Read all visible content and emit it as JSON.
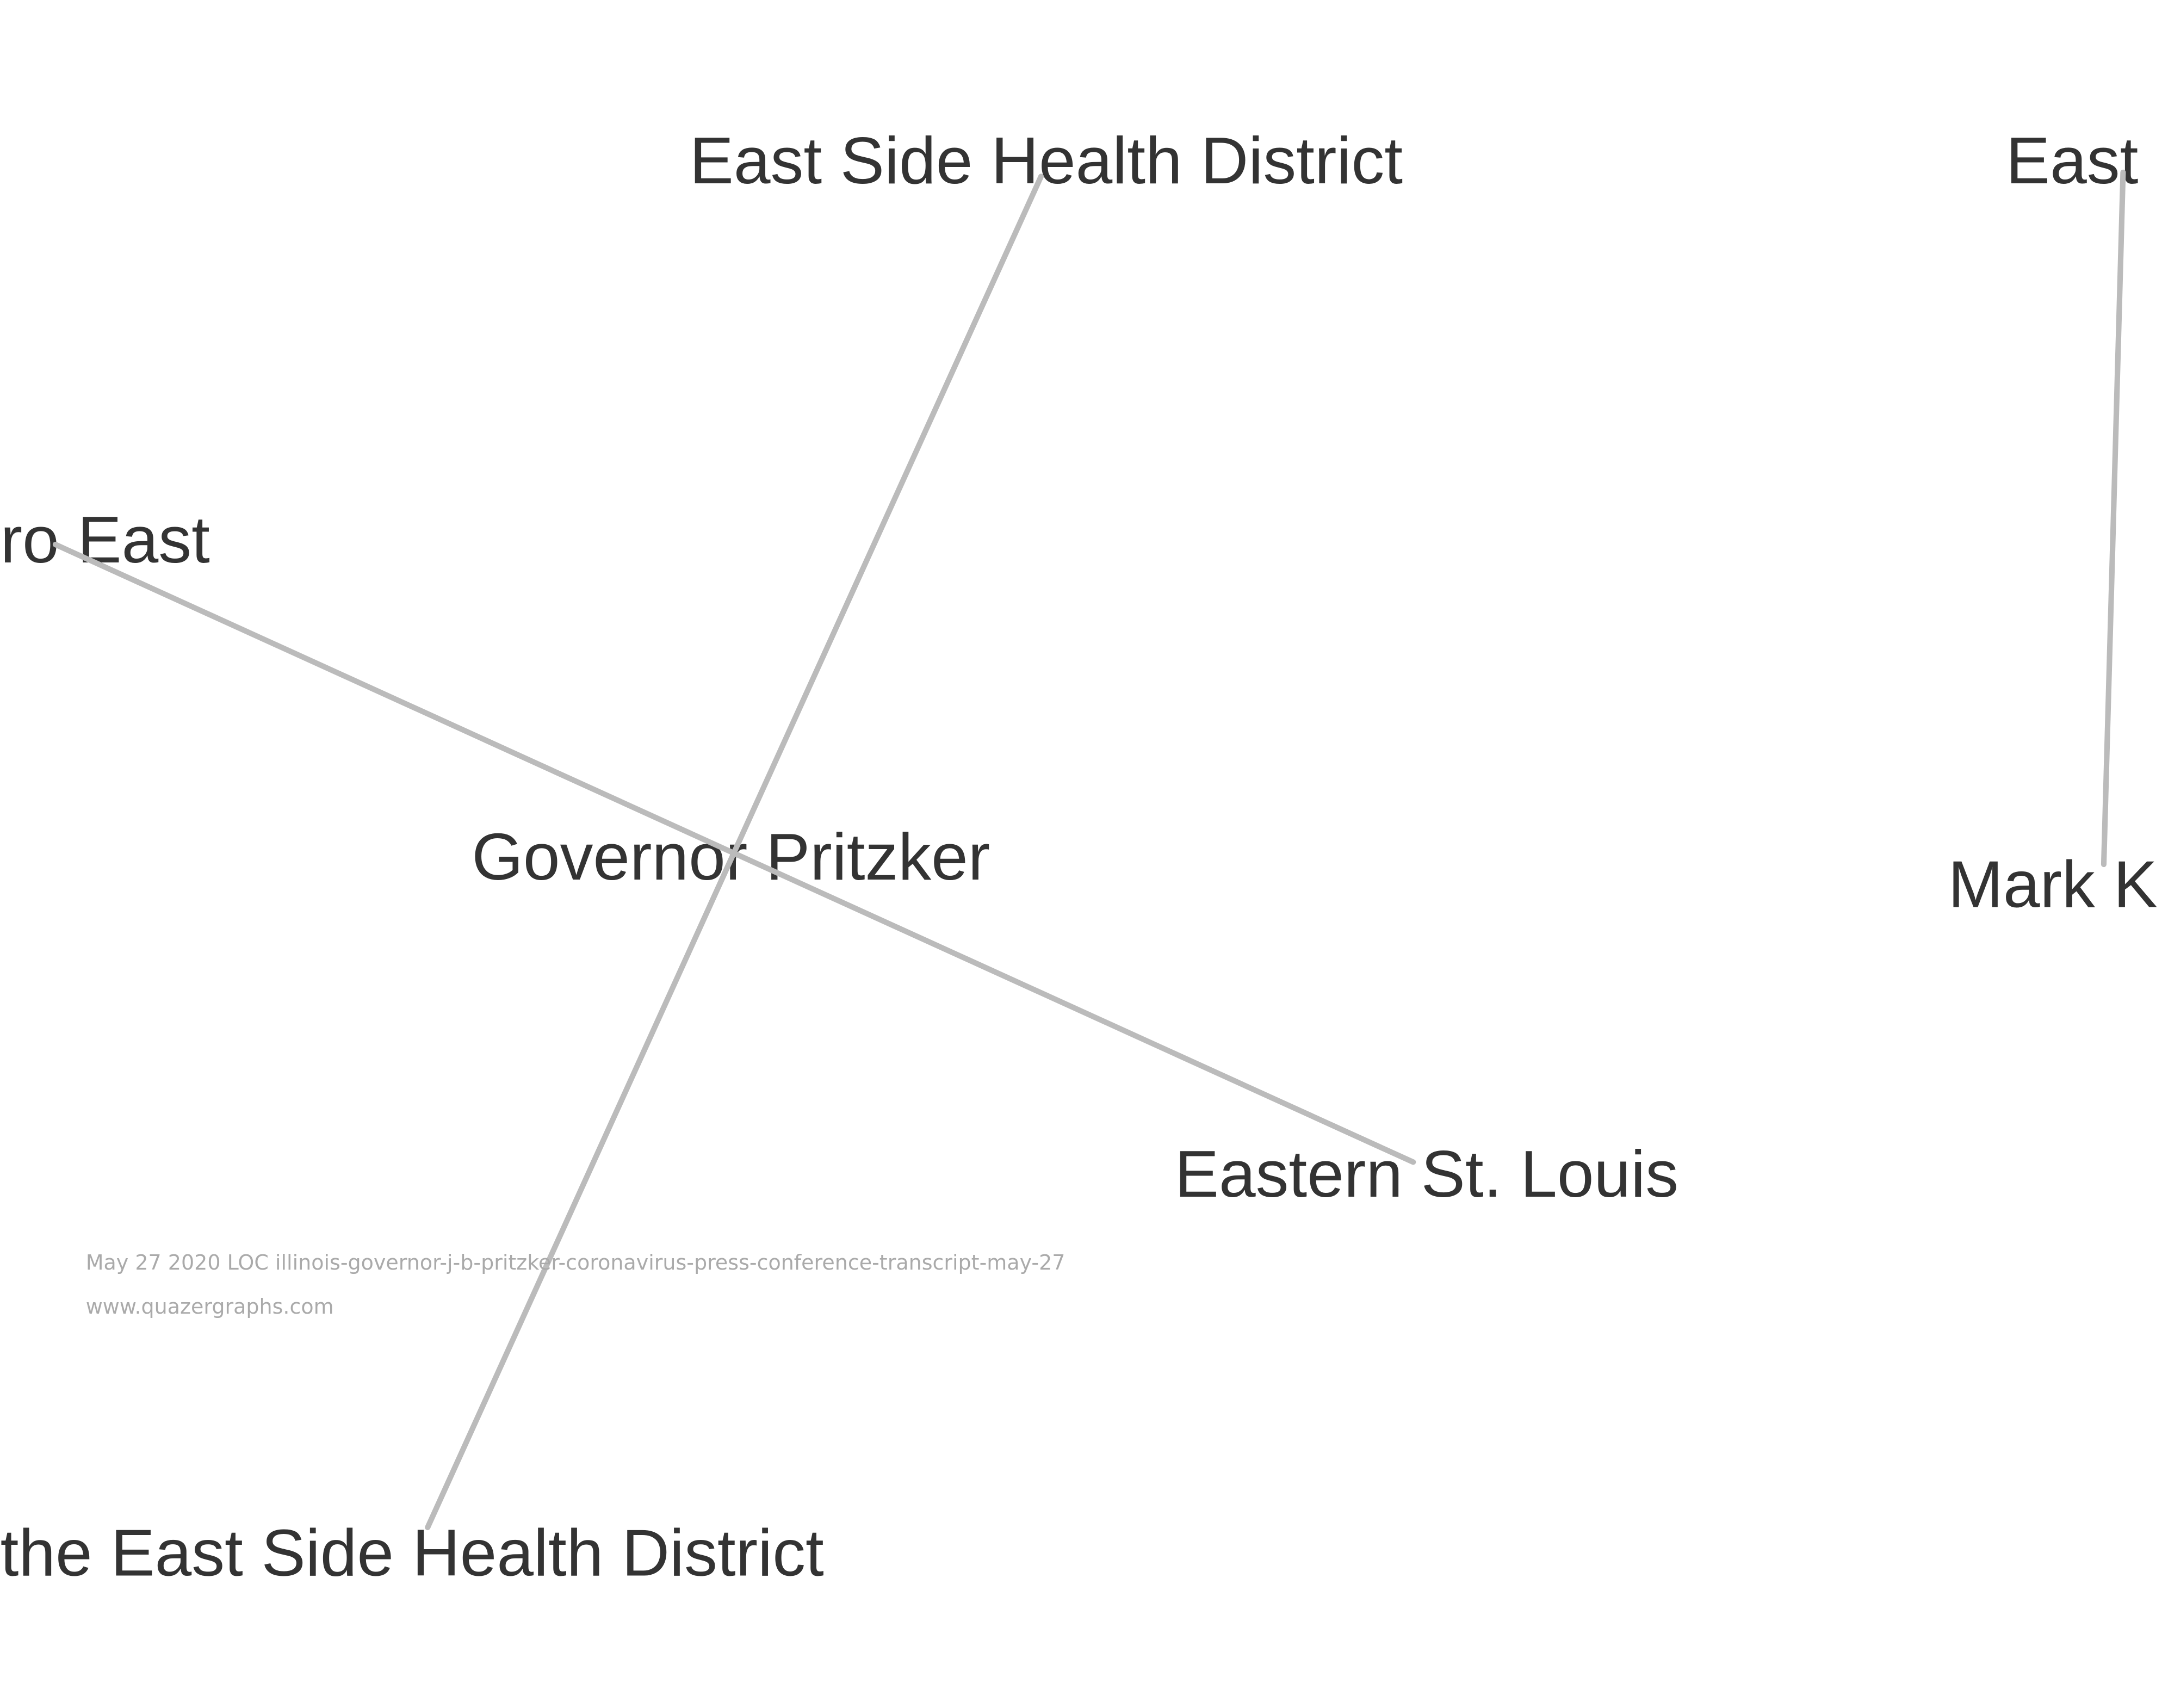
{
  "nodes": [
    {
      "label": "East Side Health District"
    },
    {
      "label": "ro East"
    },
    {
      "label": "Governor Pritzker"
    },
    {
      "label": "Eastern St. Louis"
    },
    {
      "label": "the East Side Health District"
    },
    {
      "label": "East"
    },
    {
      "label": "Mark K"
    }
  ],
  "footer": {
    "source": "May 27 2020 LOC illinois-governor-j-b-pritzker-coronavirus-press-conference-transcript-may-27",
    "site": "www.quazergraphs.com"
  }
}
